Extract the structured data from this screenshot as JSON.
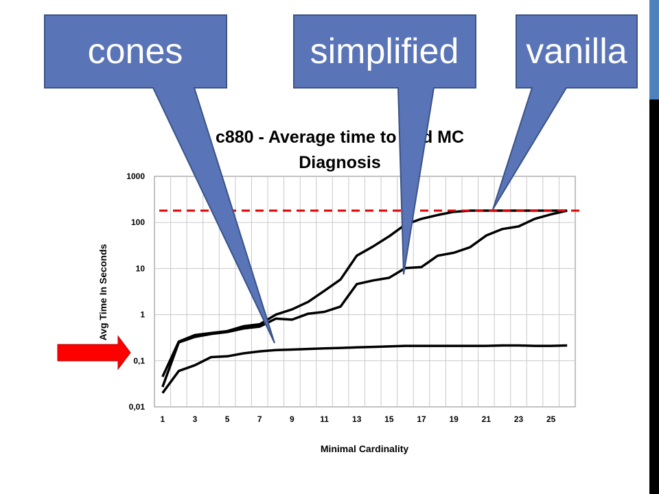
{
  "callouts": [
    {
      "label": "cones"
    },
    {
      "label": "simplified"
    },
    {
      "label": "vanilla"
    }
  ],
  "colors": {
    "callout_fill": "#5a74b8",
    "callout_stroke": "#3a5386",
    "timeout_line": "#dd0000",
    "arrow": "#ff0000",
    "side_strip_top": "#4f81bd",
    "side_strip_bottom": "#000000"
  },
  "chart_data": {
    "type": "line",
    "title": "c880 - Average time to find MC Diagnosis",
    "title_lines": [
      "c880 - Average time to find MC",
      "Diagnosis"
    ],
    "xlabel": "Minimal Cardinality",
    "ylabel": "Avg Time In Seconds",
    "yscale": "log",
    "ylim": [
      0.01,
      1000
    ],
    "xlim": [
      1,
      26
    ],
    "x_ticks": [
      "1",
      "3",
      "5",
      "7",
      "9",
      "11",
      "13",
      "15",
      "17",
      "19",
      "21",
      "23",
      "25"
    ],
    "y_ticks": [
      "0,01",
      "0,1",
      "1",
      "10",
      "100",
      "1000"
    ],
    "grid": true,
    "timeout_line_value": 180,
    "x": [
      1,
      2,
      3,
      4,
      5,
      6,
      7,
      8,
      9,
      10,
      11,
      12,
      13,
      14,
      15,
      16,
      17,
      18,
      19,
      20,
      21,
      22,
      23,
      24,
      25,
      26
    ],
    "series": [
      {
        "values": [
          0.045,
          0.26,
          0.36,
          0.4,
          0.44,
          0.56,
          0.62,
          1.0,
          1.3,
          1.9,
          3.3,
          5.8,
          19,
          30,
          50,
          90,
          120,
          145,
          170,
          180,
          180,
          180,
          180,
          180,
          180,
          180
        ]
      },
      {
        "values": [
          0.027,
          0.25,
          0.33,
          0.38,
          0.42,
          0.5,
          0.55,
          0.82,
          0.78,
          1.05,
          1.15,
          1.5,
          4.6,
          5.5,
          6.3,
          10.2,
          10.8,
          19,
          22,
          29,
          52,
          72,
          82,
          120,
          150,
          180
        ]
      },
      {
        "values": [
          0.02,
          0.06,
          0.08,
          0.12,
          0.125,
          0.145,
          0.16,
          0.17,
          0.175,
          0.18,
          0.185,
          0.19,
          0.195,
          0.2,
          0.205,
          0.21,
          0.21,
          0.21,
          0.21,
          0.21,
          0.21,
          0.215,
          0.215,
          0.21,
          0.21,
          0.215
        ]
      }
    ]
  }
}
